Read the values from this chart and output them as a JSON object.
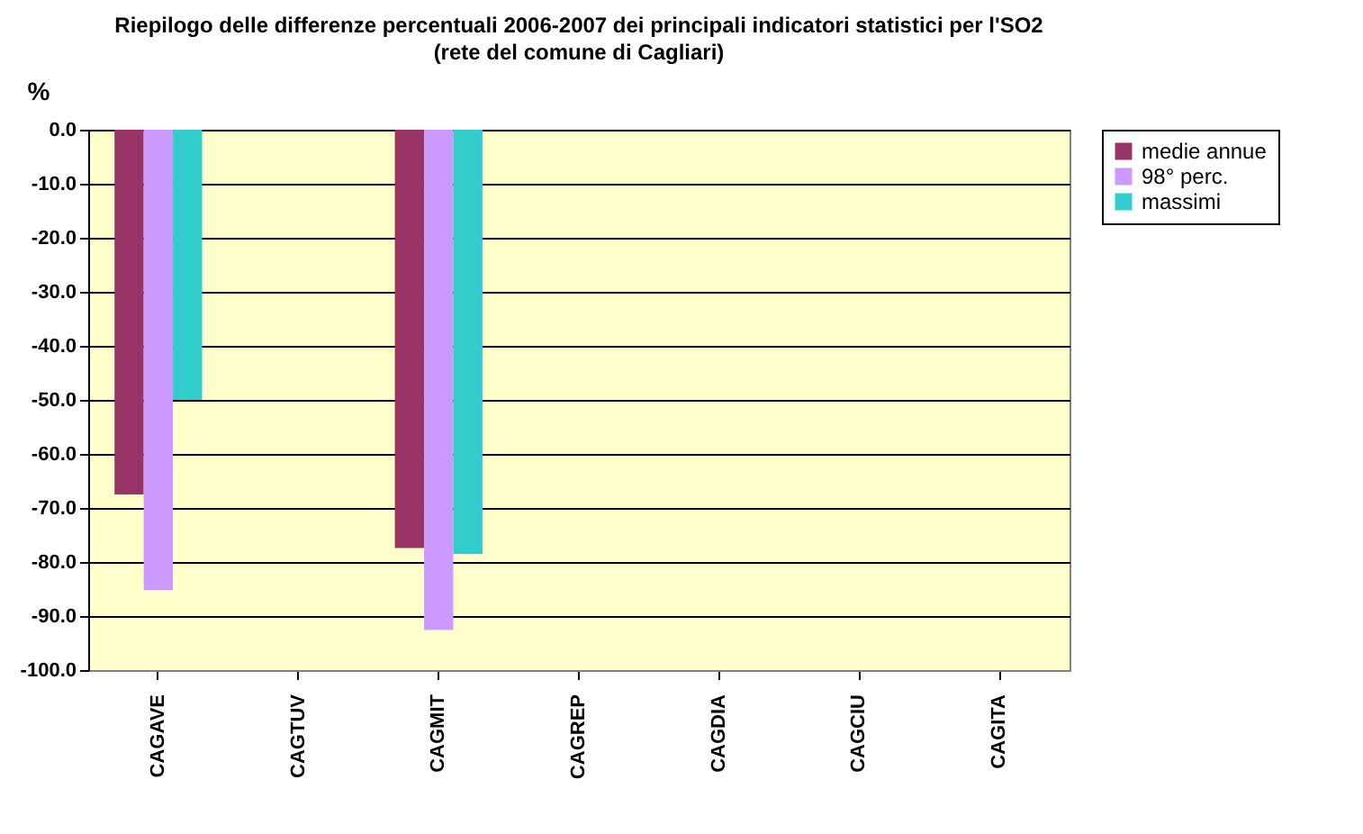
{
  "chart_data": {
    "type": "bar",
    "title": "Riepilogo delle differenze percentuali 2006-2007 dei principali indicatori statistici per l'SO2",
    "subtitle": "(rete del comune di Cagliari)",
    "ylabel": "%",
    "categories": [
      "CAGAVE",
      "CAGTUV",
      "CAGMIT",
      "CAGREP",
      "CAGDIA",
      "CAGCIU",
      "CAGITA"
    ],
    "series": [
      {
        "name": "medie annue",
        "color": "#993366",
        "values": [
          -67.5,
          null,
          -77.4,
          null,
          null,
          null,
          null
        ]
      },
      {
        "name": "98° perc.",
        "color": "#cc99ff",
        "values": [
          -85.2,
          null,
          -92.6,
          null,
          null,
          null,
          null
        ]
      },
      {
        "name": "massimi",
        "color": "#33cccc",
        "values": [
          -50.0,
          null,
          -78.5,
          null,
          null,
          null,
          null
        ]
      }
    ],
    "ylim": [
      -100,
      0
    ],
    "yticks": [
      {
        "value": -100,
        "label": "-100.0"
      },
      {
        "value": -90,
        "label": "-90.0"
      },
      {
        "value": -80,
        "label": "-80.0"
      },
      {
        "value": -70,
        "label": "-70.0"
      },
      {
        "value": -60,
        "label": "-60.0"
      },
      {
        "value": -50,
        "label": "-50.0"
      },
      {
        "value": -40,
        "label": "-40.0"
      },
      {
        "value": -30,
        "label": "-30.0"
      },
      {
        "value": -20,
        "label": "-20.0"
      },
      {
        "value": -10,
        "label": "-10.0"
      },
      {
        "value": 0,
        "label": "0.0"
      }
    ],
    "grid": "y",
    "legend": "right"
  }
}
